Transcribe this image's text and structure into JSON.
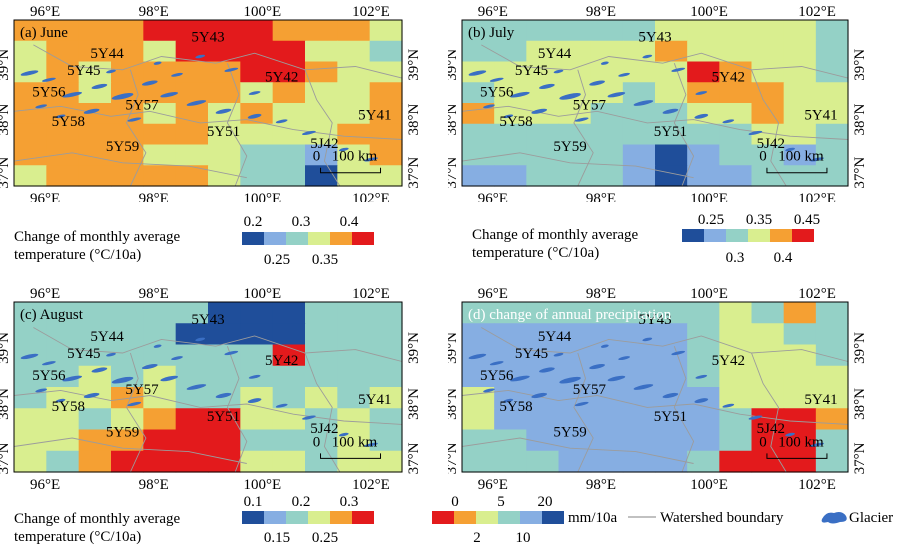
{
  "colors": {
    "dark_red": "#e31a1c",
    "orange": "#f5a033",
    "light_yellow": "#d9ee8f",
    "light_green": "#a9dcb0",
    "teal": "#94d1c6",
    "light_blue": "#86aee2",
    "mid_blue": "#4e7fcc",
    "dark_blue": "#1f4e9a",
    "glacier": "#3a6fc4",
    "boundary": "#9c9c9c"
  },
  "axes": {
    "lon_ticks": [
      "96°E",
      "98°E",
      "100°E",
      "102°E"
    ],
    "lat_ticks": [
      "39°N",
      "38°N",
      "37°N"
    ]
  },
  "stations": [
    "5Y43",
    "5Y44",
    "5Y45",
    "5Y42",
    "5Y56",
    "5Y57",
    "5Y58",
    "5Y41",
    "5Y51",
    "5Y59",
    "5J42"
  ],
  "scalebar": {
    "zero": "0",
    "label": "100 km"
  },
  "panels": [
    {
      "id": "june",
      "title": "(a) June",
      "grid": [
        "OOOORRRROOOL",
        "LOOOLRRRRLLT",
        "LOLOOOORROLL",
        "OOLOOOOLOLLO",
        "OOOOLOLOLLLO",
        "OOOOOOLLLLOO",
        "OOOOLLLTTBLO",
        "LOOOOOLTTDLL"
      ]
    },
    {
      "id": "july",
      "title": "(b) July",
      "grid": [
        "TTTTTTLLLLLT",
        "TTLLLLOLLLLT",
        "LLLLLLLROLLT",
        "TLLLLTLOOOLL",
        "OLLLTTTLLOLL",
        "TTTTTTTTTLLT",
        "TTTTTBDBTTBT",
        "BBTTTBDBBTTT"
      ]
    },
    {
      "id": "august",
      "title": "(c) August",
      "grid": [
        "TTTTTTDDDTTT",
        "TTTTTDDDDTTT",
        "TTTTTTTTRTTT",
        "TTLTLTTTTTTT",
        "TLLOLTTLTLTL",
        "LLTLORRLLTLT",
        "LLOORRRTTTLT",
        "LTORRRRLLTLL"
      ]
    },
    {
      "id": "precip",
      "title": "(d) change of annual precipitation",
      "grid": [
        "TTTTTTTTLTOT",
        "BBBBBBBTLLTT",
        "BBBBBBBTLLLT",
        "BBBBBBBTLLLL",
        "LBBBBBBBLLLL",
        "LBBBBBBBTRRO",
        "TTBBBBBBTRRT",
        "TTTBBBBTRRRT"
      ]
    }
  ],
  "legends": {
    "june": {
      "label_line1": "Change of monthly average",
      "label_line2": "temperature (°C/10a)",
      "top_ticks": [
        "0.2",
        "0.3",
        "0.4"
      ],
      "bottom_ticks": [
        "0.25",
        "0.35"
      ]
    },
    "july": {
      "label_line1": "Change of monthly average",
      "label_line2": "temperature (°C/10a)",
      "top_ticks": [
        "0.25",
        "0.35",
        "0.45"
      ],
      "bottom_ticks": [
        "0.3",
        "0.4"
      ]
    },
    "august": {
      "label_line1": "Change of monthly average",
      "label_line2": "temperature (°C/10a)",
      "top_ticks": [
        "0.1",
        "0.2",
        "0.3"
      ],
      "bottom_ticks": [
        "0.15",
        "0.25"
      ]
    },
    "precip": {
      "top_ticks": [
        "0",
        "5",
        "20"
      ],
      "bottom_ticks": [
        "2",
        "10"
      ],
      "unit": "mm/10a",
      "boundary_label": "Watershed boundary",
      "glacier_label": "Glacier"
    }
  }
}
